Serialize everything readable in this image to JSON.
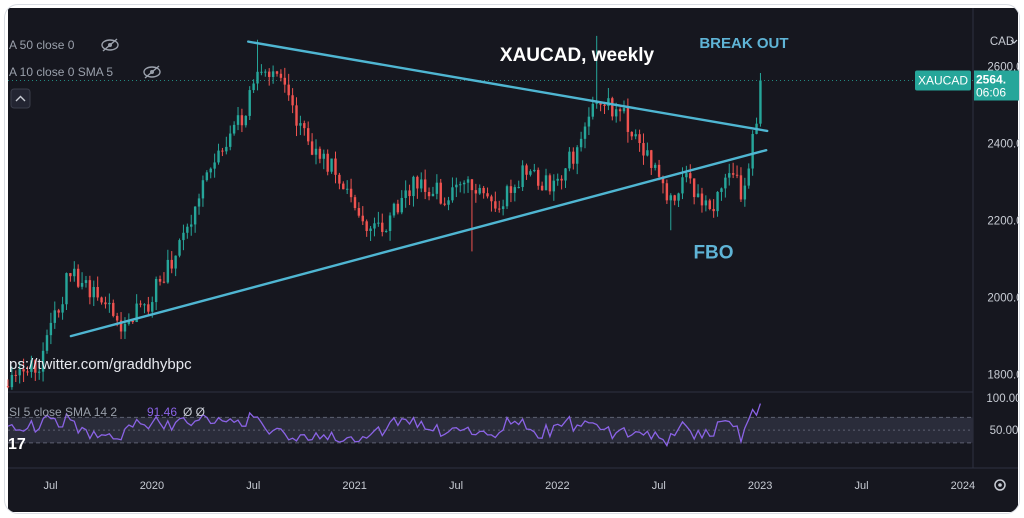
{
  "indicators": {
    "ma50": "A 50 close 0",
    "ma10": "A 10 close 0 SMA 5",
    "rsi_label": "SI 5 close SMA 14 2",
    "rsi_value": "91.46",
    "rsi_icons": "Ø  Ø"
  },
  "watermark": "ps://twitter.com/graddhybpc",
  "tv_logo": "17",
  "colors": {
    "background": "#16171f",
    "up": "#26a69a",
    "down": "#ef5350",
    "trendline": "#4fb6d2",
    "annotation": "#5fb4d6",
    "rsi_line": "#8b63e6",
    "price_tag": "#26a69a"
  },
  "chart_data": {
    "type": "candlestick",
    "title": "XAUCAD, weekly",
    "currency": "CAD",
    "x_range": [
      2019.29,
      2024.05
    ],
    "ylim": [
      1760,
      2690
    ],
    "y_ticks": [
      1800,
      2000,
      2200,
      2400,
      2600
    ],
    "y_tick_labels": [
      "1800.0",
      "2000.0",
      "2200.0",
      "2400.0",
      "2600.0"
    ],
    "x_ticks": [
      {
        "x": 2019.5,
        "label": "Jul"
      },
      {
        "x": 2020.0,
        "label": "2020"
      },
      {
        "x": 2020.5,
        "label": "Jul"
      },
      {
        "x": 2021.0,
        "label": "2021"
      },
      {
        "x": 2021.5,
        "label": "Jul"
      },
      {
        "x": 2022.0,
        "label": "2022"
      },
      {
        "x": 2022.5,
        "label": "Jul"
      },
      {
        "x": 2023.0,
        "label": "2023"
      },
      {
        "x": 2023.5,
        "label": "Jul"
      },
      {
        "x": 2024.0,
        "label": "2024"
      }
    ],
    "trendlines": [
      {
        "name": "upper",
        "points": [
          [
            2020.475,
            2665
          ],
          [
            2023.035,
            2433
          ]
        ]
      },
      {
        "name": "lower",
        "points": [
          [
            2019.6,
            1900
          ],
          [
            2023.03,
            2383
          ]
        ]
      }
    ],
    "anchors": [
      [
        2019.29,
        1770
      ],
      [
        2019.45,
        1830
      ],
      [
        2019.59,
        2060
      ],
      [
        2019.72,
        2010
      ],
      [
        2019.85,
        1935
      ],
      [
        2019.98,
        1985
      ],
      [
        2020.12,
        2120
      ],
      [
        2020.22,
        2240
      ],
      [
        2020.35,
        2400
      ],
      [
        2020.45,
        2470
      ],
      [
        2020.52,
        2600
      ],
      [
        2020.63,
        2560
      ],
      [
        2020.8,
        2380
      ],
      [
        2020.95,
        2300
      ],
      [
        2021.08,
        2160
      ],
      [
        2021.17,
        2200
      ],
      [
        2021.3,
        2300
      ],
      [
        2021.45,
        2260
      ],
      [
        2021.55,
        2290
      ],
      [
        2021.68,
        2230
      ],
      [
        2021.83,
        2320
      ],
      [
        2021.96,
        2290
      ],
      [
        2022.1,
        2380
      ],
      [
        2022.2,
        2520
      ],
      [
        2022.33,
        2470
      ],
      [
        2022.45,
        2360
      ],
      [
        2022.55,
        2240
      ],
      [
        2022.63,
        2300
      ],
      [
        2022.76,
        2220
      ],
      [
        2022.84,
        2340
      ],
      [
        2022.91,
        2270
      ],
      [
        2022.97,
        2430
      ],
      [
        2023.02,
        2564
      ]
    ],
    "rsi": {
      "ylim": [
        0,
        105
      ],
      "levels": [
        50
      ],
      "bands": [
        30,
        70
      ],
      "tick_labels": [
        "100.00",
        "50.00"
      ],
      "last": 91.46
    },
    "last_price": {
      "symbol": "XAUCAD",
      "value": "2564.",
      "countdown": "06:06"
    },
    "annotations": [
      {
        "text": "BREAK OUT",
        "x": 2022.92,
        "y": 2648
      },
      {
        "text": "FBO",
        "x": 2022.77,
        "y": 2101
      }
    ]
  }
}
